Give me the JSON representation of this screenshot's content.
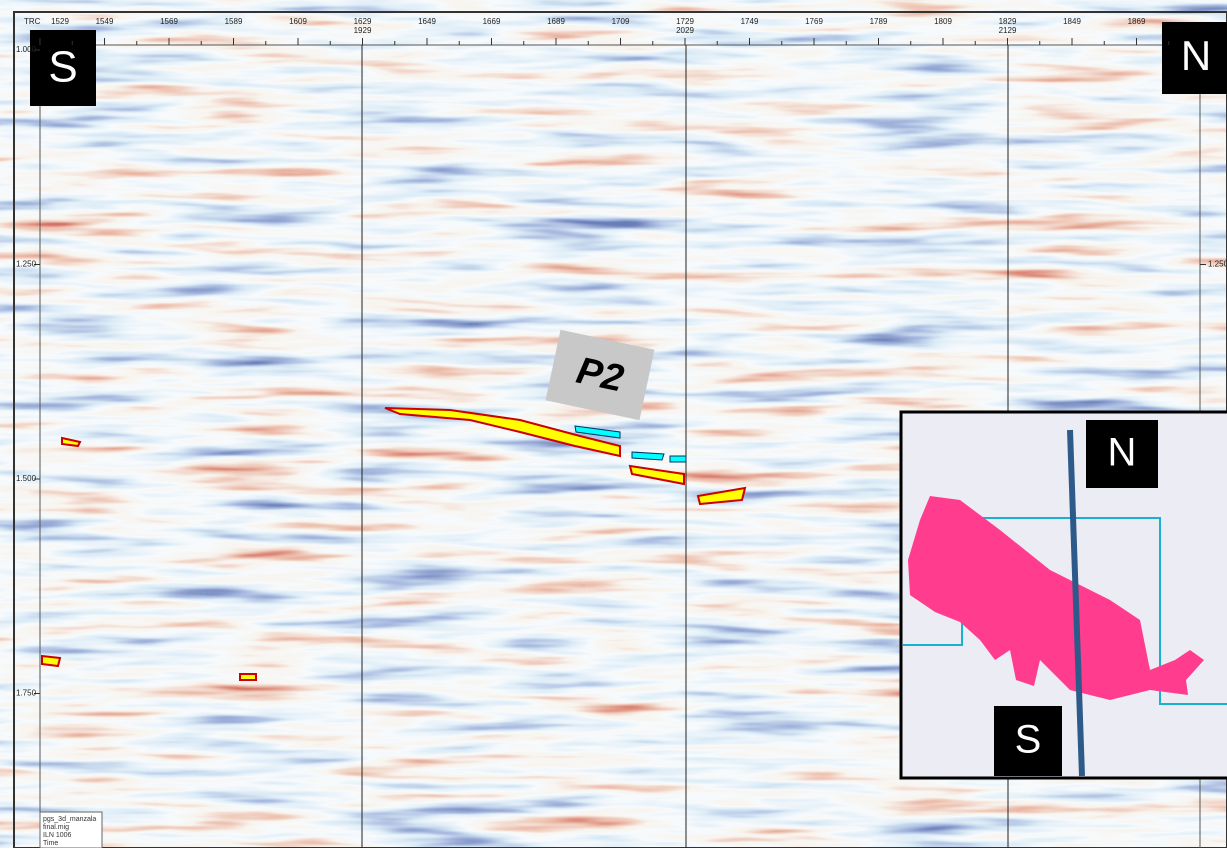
{
  "section": {
    "corner_south": "S",
    "corner_north": "N",
    "horizon_label": "P2",
    "top_axis": {
      "name": "TRC",
      "ticks": [
        "1529",
        "1549",
        "1569",
        "1589",
        "1609",
        "1629",
        "1649",
        "1669",
        "1689",
        "1709",
        "1729",
        "1749",
        "1769",
        "1789",
        "1809",
        "1829",
        "1849",
        "1869"
      ],
      "second_row": [
        "1929",
        "2029",
        "2129"
      ]
    },
    "left_axis": {
      "ticks": [
        "1.000",
        "1.250",
        "1.500",
        "1.750"
      ]
    },
    "right_axis": {
      "ticks": [
        "1.250"
      ]
    },
    "info_box": [
      "pgs_3d_manzala",
      "final.mig",
      "ILN 1006",
      "Time"
    ]
  },
  "inset": {
    "north": "N",
    "south": "S"
  }
}
